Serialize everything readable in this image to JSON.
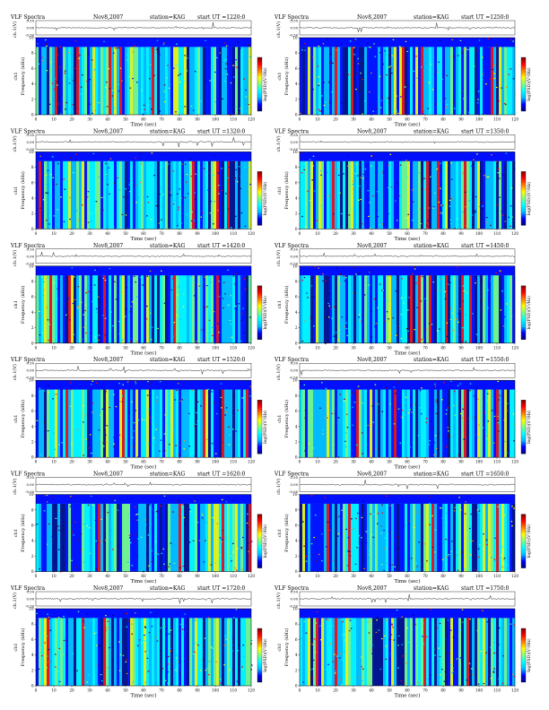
{
  "chart_data": {
    "type": "heatmap",
    "panels": [
      {
        "title": "VLF Spectra",
        "date": "Nov8,2007",
        "station": "station=KAG",
        "start": "start UT =1220:0"
      },
      {
        "title": "VLF Spectra",
        "date": "Nov8,2007",
        "station": "station=KAG",
        "start": "start UT =1250:0"
      },
      {
        "title": "VLF Spectra",
        "date": "Nov8,2007",
        "station": "station=KAG",
        "start": "start UT =1320:0"
      },
      {
        "title": "VLF Spectra",
        "date": "Nov8,2007",
        "station": "station=KAG",
        "start": "start UT =1350:0"
      },
      {
        "title": "VLF Spectra",
        "date": "Nov8,2007",
        "station": "station=KAG",
        "start": "start UT =1420:0"
      },
      {
        "title": "VLF Spectra",
        "date": "Nov8,2007",
        "station": "station=KAG",
        "start": "start UT =1450:0"
      },
      {
        "title": "VLF Spectra",
        "date": "Nov8,2007",
        "station": "station=KAG",
        "start": "start UT =1520:0"
      },
      {
        "title": "VLF Spectra",
        "date": "Nov8,2007",
        "station": "station=KAG",
        "start": "start UT =1550:0"
      },
      {
        "title": "VLF Spectra",
        "date": "Nov8,2007",
        "station": "station=KAG",
        "start": "start UT =1620:0"
      },
      {
        "title": "VLF Spectra",
        "date": "Nov8,2007",
        "station": "station=KAG",
        "start": "start UT =1650:0"
      },
      {
        "title": "VLF Spectra",
        "date": "Nov8,2007",
        "station": "station=KAG",
        "start": "start UT =1720:0"
      },
      {
        "title": "VLF Spectra",
        "date": "Nov8,2007",
        "station": "station=KAG",
        "start": "start UT =1750:0"
      }
    ],
    "waveform_ylabel": "ch.1(V)",
    "waveform_ticks": [
      "0.50",
      "0.00",
      "-0.50"
    ],
    "waveform_ylim": [
      -0.5,
      0.5
    ],
    "channel_label": "ch1",
    "ylabel": "Frequency (kHz)",
    "yticks": [
      "0",
      "2",
      "4",
      "6",
      "8",
      "10"
    ],
    "ylim": [
      0,
      10
    ],
    "xlabel": "Time (sec)",
    "xticks": [
      "0",
      "10",
      "20",
      "30",
      "40",
      "50",
      "60",
      "70",
      "80",
      "90",
      "100",
      "110",
      "120"
    ],
    "xlim": [
      0,
      120
    ],
    "colorbar_label": "log(PSD)(V²/Hz)",
    "colorbar_colors": [
      "#00007f",
      "#0000ff",
      "#00bfff",
      "#00ffff",
      "#7fff7f",
      "#ffff00",
      "#ff7f00",
      "#ff0000",
      "#7f0000"
    ]
  }
}
